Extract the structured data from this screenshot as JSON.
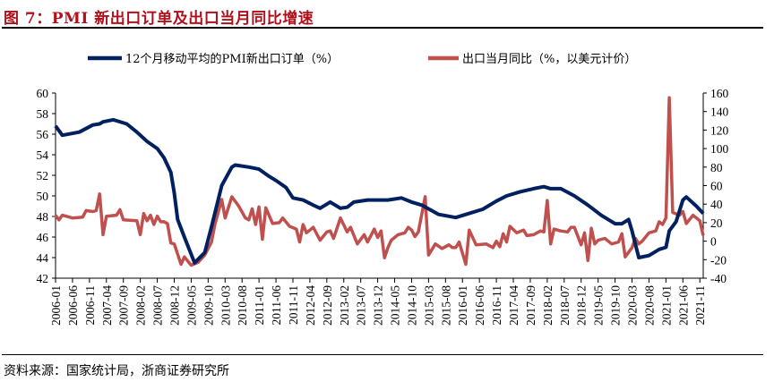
{
  "title": "图 7：PMI 新出口订单及出口当月同比增速",
  "source": "资料来源：国家统计局，浙商证券研究所",
  "chart_data": {
    "type": "line",
    "title": "PMI 新出口订单及出口当月同比增速",
    "x_range": [
      "2006-01",
      "2021-12"
    ],
    "x_tick_labels": [
      "2006-01",
      "2006-06",
      "2006-11",
      "2007-04",
      "2007-09",
      "2008-02",
      "2008-07",
      "2008-12",
      "2009-05",
      "2009-10",
      "2010-03",
      "2010-08",
      "2011-01",
      "2011-06",
      "2011-11",
      "2012-04",
      "2012-09",
      "2013-02",
      "2013-07",
      "2013-12",
      "2014-05",
      "2014-10",
      "2015-03",
      "2015-08",
      "2016-01",
      "2016-06",
      "2016-11",
      "2017-04",
      "2017-09",
      "2018-02",
      "2018-07",
      "2018-12",
      "2019-05",
      "2019-10",
      "2020-03",
      "2020-08",
      "2021-01",
      "2021-06",
      "2021-11"
    ],
    "y_left": {
      "range": [
        42,
        60
      ],
      "ticks": [
        42,
        44,
        46,
        48,
        50,
        52,
        54,
        56,
        58,
        60
      ]
    },
    "y_right": {
      "range": [
        -40,
        160
      ],
      "ticks": [
        -40,
        -20,
        0,
        20,
        40,
        60,
        80,
        100,
        120,
        140,
        160
      ]
    },
    "legend_position": "top",
    "series": [
      {
        "name": "12个月移动平均的PMI新出口订单（%）",
        "axis": "left",
        "color": "#002060",
        "points": [
          [
            "2006-01",
            56.8
          ],
          [
            "2006-03",
            55.9
          ],
          [
            "2006-08",
            56.2
          ],
          [
            "2006-12",
            56.9
          ],
          [
            "2007-02",
            57.0
          ],
          [
            "2007-03",
            57.2
          ],
          [
            "2007-06",
            57.4
          ],
          [
            "2007-10",
            57.0
          ],
          [
            "2008-01",
            56.2
          ],
          [
            "2008-04",
            55.3
          ],
          [
            "2008-07",
            54.6
          ],
          [
            "2008-09",
            53.7
          ],
          [
            "2008-11",
            52.3
          ],
          [
            "2008-12",
            50.3
          ],
          [
            "2009-01",
            47.7
          ],
          [
            "2009-03",
            46.0
          ],
          [
            "2009-06",
            43.5
          ],
          [
            "2009-09",
            44.5
          ],
          [
            "2009-11",
            47.0
          ],
          [
            "2010-02",
            51.0
          ],
          [
            "2010-05",
            52.8
          ],
          [
            "2010-06",
            53.0
          ],
          [
            "2010-10",
            52.8
          ],
          [
            "2011-01",
            52.6
          ],
          [
            "2011-04",
            51.9
          ],
          [
            "2011-06",
            51.5
          ],
          [
            "2011-09",
            50.8
          ],
          [
            "2011-11",
            49.8
          ],
          [
            "2012-02",
            49.6
          ],
          [
            "2012-05",
            49.1
          ],
          [
            "2012-07",
            48.8
          ],
          [
            "2012-10",
            49.4
          ],
          [
            "2013-01",
            48.8
          ],
          [
            "2013-03",
            48.9
          ],
          [
            "2013-05",
            49.4
          ],
          [
            "2013-09",
            49.6
          ],
          [
            "2014-03",
            49.6
          ],
          [
            "2014-07",
            49.8
          ],
          [
            "2014-10",
            49.4
          ],
          [
            "2015-01",
            49.1
          ],
          [
            "2015-06",
            48.2
          ],
          [
            "2015-11",
            47.9
          ],
          [
            "2016-03",
            48.3
          ],
          [
            "2016-07",
            48.7
          ],
          [
            "2016-11",
            49.5
          ],
          [
            "2017-02",
            50.0
          ],
          [
            "2017-06",
            50.4
          ],
          [
            "2017-10",
            50.7
          ],
          [
            "2018-01",
            50.9
          ],
          [
            "2018-03",
            50.7
          ],
          [
            "2018-06",
            50.7
          ],
          [
            "2018-10",
            50.0
          ],
          [
            "2019-02",
            49.1
          ],
          [
            "2019-06",
            48.1
          ],
          [
            "2019-10",
            47.3
          ],
          [
            "2019-12",
            47.3
          ],
          [
            "2020-02",
            47.7
          ],
          [
            "2020-03",
            46.6
          ],
          [
            "2020-05",
            44.0
          ],
          [
            "2020-08",
            44.2
          ],
          [
            "2020-11",
            44.8
          ],
          [
            "2021-01",
            45.0
          ],
          [
            "2021-02",
            46.6
          ],
          [
            "2021-04",
            47.5
          ],
          [
            "2021-06",
            49.6
          ],
          [
            "2021-07",
            49.9
          ],
          [
            "2021-10",
            49.0
          ],
          [
            "2021-12",
            48.3
          ]
        ]
      },
      {
        "name": "出口当月同比（%，以美元计价）",
        "axis": "right",
        "color": "#C0504D",
        "points": [
          [
            "2006-01",
            28
          ],
          [
            "2006-02",
            23
          ],
          [
            "2006-03",
            28
          ],
          [
            "2006-06",
            25
          ],
          [
            "2006-09",
            26
          ],
          [
            "2006-10",
            33
          ],
          [
            "2006-12",
            32
          ],
          [
            "2007-01",
            33
          ],
          [
            "2007-02",
            51
          ],
          [
            "2007-03",
            7
          ],
          [
            "2007-04",
            27
          ],
          [
            "2007-07",
            28
          ],
          [
            "2007-08",
            34
          ],
          [
            "2007-09",
            23
          ],
          [
            "2008-01",
            22
          ],
          [
            "2008-02",
            7
          ],
          [
            "2008-03",
            30
          ],
          [
            "2008-04",
            22
          ],
          [
            "2008-05",
            28
          ],
          [
            "2008-06",
            18
          ],
          [
            "2008-07",
            27
          ],
          [
            "2008-08",
            21
          ],
          [
            "2008-09",
            21
          ],
          [
            "2008-10",
            19
          ],
          [
            "2008-11",
            -2
          ],
          [
            "2008-12",
            -3
          ],
          [
            "2009-02",
            -25
          ],
          [
            "2009-03",
            -17
          ],
          [
            "2009-05",
            -26
          ],
          [
            "2009-07",
            -23
          ],
          [
            "2009-09",
            -15
          ],
          [
            "2009-11",
            -1
          ],
          [
            "2009-12",
            18
          ],
          [
            "2010-02",
            45
          ],
          [
            "2010-03",
            25
          ],
          [
            "2010-05",
            48
          ],
          [
            "2010-07",
            38
          ],
          [
            "2010-09",
            25
          ],
          [
            "2010-10",
            23
          ],
          [
            "2010-11",
            35
          ],
          [
            "2010-12",
            18
          ],
          [
            "2011-01",
            37
          ],
          [
            "2011-02",
            2
          ],
          [
            "2011-03",
            36
          ],
          [
            "2011-05",
            19
          ],
          [
            "2011-07",
            20
          ],
          [
            "2011-08",
            25
          ],
          [
            "2011-10",
            16
          ],
          [
            "2011-12",
            13
          ],
          [
            "2012-01",
            -1
          ],
          [
            "2012-02",
            18
          ],
          [
            "2012-03",
            9
          ],
          [
            "2012-05",
            15
          ],
          [
            "2012-07",
            1
          ],
          [
            "2012-09",
            10
          ],
          [
            "2012-10",
            11
          ],
          [
            "2012-11",
            3
          ],
          [
            "2013-01",
            25
          ],
          [
            "2013-03",
            10
          ],
          [
            "2013-04",
            15
          ],
          [
            "2013-06",
            -3
          ],
          [
            "2013-08",
            7
          ],
          [
            "2013-09",
            -1
          ],
          [
            "2013-11",
            13
          ],
          [
            "2013-12",
            4
          ],
          [
            "2014-01",
            11
          ],
          [
            "2014-02",
            -18
          ],
          [
            "2014-03",
            -7
          ],
          [
            "2014-04",
            1
          ],
          [
            "2014-06",
            7
          ],
          [
            "2014-08",
            9
          ],
          [
            "2014-09",
            15
          ],
          [
            "2014-10",
            12
          ],
          [
            "2014-11",
            5
          ],
          [
            "2014-12",
            10
          ],
          [
            "2015-02",
            48
          ],
          [
            "2015-03",
            -15
          ],
          [
            "2015-05",
            -3
          ],
          [
            "2015-07",
            -8
          ],
          [
            "2015-08",
            -6
          ],
          [
            "2015-09",
            -4
          ],
          [
            "2015-10",
            -7
          ],
          [
            "2015-11",
            -7
          ],
          [
            "2015-12",
            -1
          ],
          [
            "2016-02",
            -25
          ],
          [
            "2016-03",
            12
          ],
          [
            "2016-05",
            -4
          ],
          [
            "2016-08",
            -3
          ],
          [
            "2016-10",
            -7
          ],
          [
            "2016-11",
            0
          ],
          [
            "2016-12",
            -6
          ],
          [
            "2017-01",
            8
          ],
          [
            "2017-02",
            -1
          ],
          [
            "2017-03",
            16
          ],
          [
            "2017-05",
            9
          ],
          [
            "2017-07",
            12
          ],
          [
            "2017-08",
            6
          ],
          [
            "2017-10",
            7
          ],
          [
            "2017-12",
            11
          ],
          [
            "2018-01",
            10
          ],
          [
            "2018-02",
            44
          ],
          [
            "2018-03",
            -3
          ],
          [
            "2018-04",
            13
          ],
          [
            "2018-06",
            11
          ],
          [
            "2018-08",
            10
          ],
          [
            "2018-09",
            15
          ],
          [
            "2018-10",
            15
          ],
          [
            "2018-12",
            -4
          ],
          [
            "2019-01",
            9
          ],
          [
            "2019-02",
            -21
          ],
          [
            "2019-03",
            14
          ],
          [
            "2019-04",
            -3
          ],
          [
            "2019-05",
            1
          ],
          [
            "2019-07",
            3
          ],
          [
            "2019-09",
            -3
          ],
          [
            "2019-11",
            -1
          ],
          [
            "2019-12",
            8
          ],
          [
            "2020-01",
            -17
          ],
          [
            "2020-03",
            -7
          ],
          [
            "2020-04",
            3
          ],
          [
            "2020-05",
            -3
          ],
          [
            "2020-06",
            0
          ],
          [
            "2020-08",
            9
          ],
          [
            "2020-10",
            11
          ],
          [
            "2020-11",
            21
          ],
          [
            "2020-12",
            18
          ],
          [
            "2021-01",
            25
          ],
          [
            "2021-02",
            155
          ],
          [
            "2021-03",
            31
          ],
          [
            "2021-05",
            28
          ],
          [
            "2021-06",
            32
          ],
          [
            "2021-07",
            19
          ],
          [
            "2021-09",
            28
          ],
          [
            "2021-11",
            22
          ],
          [
            "2021-12",
            6
          ]
        ]
      }
    ]
  }
}
